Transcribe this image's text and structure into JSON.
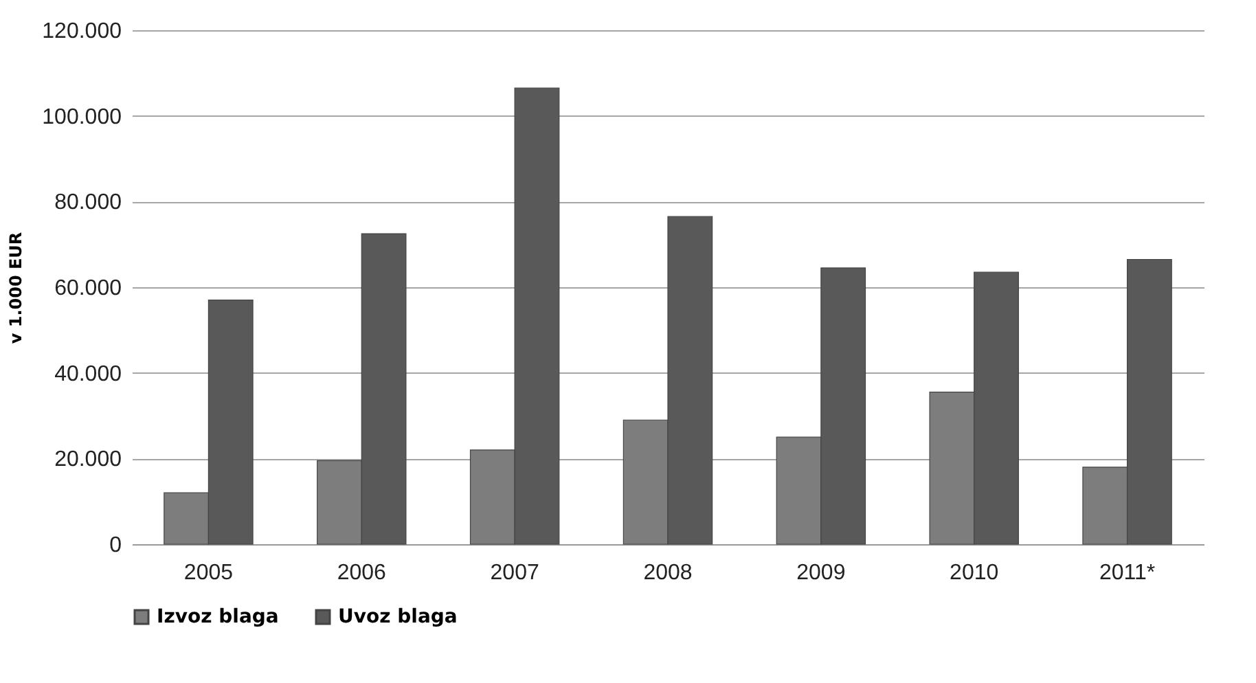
{
  "chart_data": {
    "type": "bar",
    "ylabel": "v 1.000 EUR",
    "categories": [
      "2005",
      "2006",
      "2007",
      "2008",
      "2009",
      "2010",
      "2011*"
    ],
    "series": [
      {
        "name": "Izvoz blaga",
        "color": "#7d7d7d",
        "values": [
          12000,
          19500,
          22000,
          29000,
          25000,
          35500,
          18000
        ]
      },
      {
        "name": "Uvoz blaga",
        "color": "#595959",
        "values": [
          57000,
          72500,
          106500,
          76500,
          64500,
          63500,
          66500
        ]
      }
    ],
    "ylim": [
      0,
      120000
    ],
    "yticks": [
      0,
      {
        "value": 20000,
        "label": "20.000"
      },
      {
        "value": 40000,
        "label": "40.000"
      },
      {
        "value": 60000,
        "label": "60.000"
      },
      {
        "value": 80000,
        "label": "80.000"
      },
      {
        "value": 100000,
        "label": "100.000"
      },
      {
        "value": 120000,
        "label": "120.000"
      }
    ],
    "grid": "y",
    "legend": "bottom"
  }
}
